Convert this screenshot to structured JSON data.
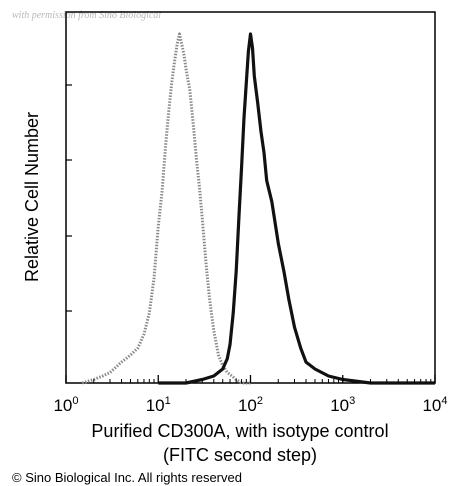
{
  "watermark": "with permission from Sino Biological",
  "copyright": "© Sino Biological Inc. All rights reserved",
  "chart_data": {
    "type": "line",
    "title": "",
    "xlabel_lines": [
      "Purified CD300A, with isotype control",
      "(FITC second step)"
    ],
    "ylabel": "Relative Cell Number",
    "x_scale": "log",
    "xlim": [
      1,
      10000
    ],
    "ylim": [
      0,
      1
    ],
    "x_ticks": [
      {
        "base": "10",
        "exp": "0",
        "value": 1
      },
      {
        "base": "10",
        "exp": "1",
        "value": 10
      },
      {
        "base": "10",
        "exp": "2",
        "value": 100
      },
      {
        "base": "10",
        "exp": "3",
        "value": 1000
      },
      {
        "base": "10",
        "exp": "4",
        "value": 10000
      }
    ],
    "grid": false,
    "legend": "none",
    "series": [
      {
        "style": "dotted-gray",
        "color": "#8a8a8a",
        "x": [
          1.5,
          2,
          2.5,
          3,
          4,
          5,
          6,
          7,
          8,
          9,
          10,
          11,
          12,
          13,
          14,
          15,
          16,
          17,
          18,
          19,
          20,
          22,
          24,
          26,
          28,
          30,
          33,
          36,
          40,
          45,
          50,
          56,
          63,
          70,
          80,
          100
        ],
        "y": [
          0.0,
          0.01,
          0.02,
          0.03,
          0.06,
          0.08,
          0.1,
          0.14,
          0.2,
          0.3,
          0.45,
          0.55,
          0.68,
          0.78,
          0.86,
          0.92,
          0.97,
          1.0,
          0.97,
          0.94,
          0.9,
          0.84,
          0.74,
          0.64,
          0.56,
          0.47,
          0.34,
          0.24,
          0.15,
          0.08,
          0.05,
          0.03,
          0.02,
          0.01,
          0.0,
          0.0
        ]
      },
      {
        "style": "solid-black",
        "color": "#111111",
        "x": [
          10,
          20,
          30,
          40,
          50,
          56,
          60,
          65,
          70,
          75,
          80,
          85,
          90,
          95,
          100,
          105,
          110,
          120,
          130,
          140,
          150,
          170,
          200,
          230,
          260,
          300,
          350,
          400,
          500,
          700,
          1000,
          2000,
          4000,
          10000
        ],
        "y": [
          0.0,
          0.0,
          0.01,
          0.02,
          0.04,
          0.07,
          0.11,
          0.2,
          0.32,
          0.48,
          0.62,
          0.76,
          0.86,
          0.95,
          1.0,
          0.96,
          0.88,
          0.8,
          0.72,
          0.66,
          0.58,
          0.52,
          0.4,
          0.32,
          0.24,
          0.16,
          0.1,
          0.06,
          0.04,
          0.02,
          0.01,
          0.0,
          0.0,
          0.0
        ]
      }
    ]
  }
}
